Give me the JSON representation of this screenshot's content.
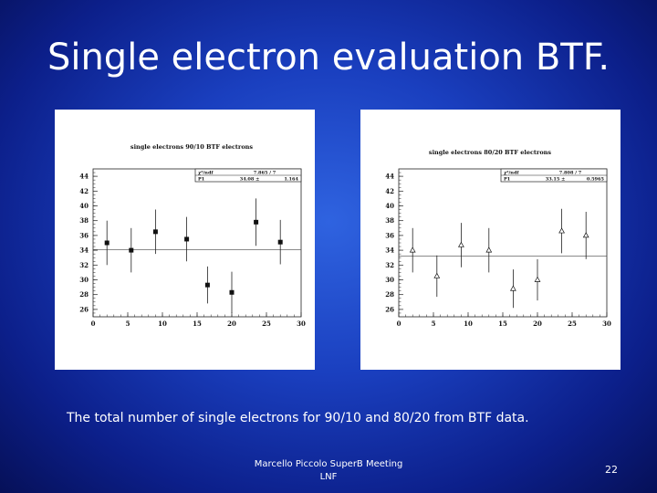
{
  "slide": {
    "title": "Single electron evaluation BTF.",
    "caption": "The total number of single electrons  for 90/10 and 80/20  from BTF  data.",
    "footer_line1": "Marcello Piccolo SuperB Meeting",
    "footer_line2": "LNF",
    "page_number": "22"
  },
  "chart_data": [
    {
      "type": "scatter",
      "title": "single electrons 90/10 BTF electrons",
      "xlabel": "",
      "ylabel": "",
      "xlim": [
        0,
        30
      ],
      "ylim": [
        25,
        45
      ],
      "x_ticks": [
        "0",
        "5",
        "10",
        "15",
        "20",
        "25",
        "30"
      ],
      "y_ticks": [
        "26",
        "28",
        "30",
        "32",
        "34",
        "36",
        "38",
        "40",
        "42",
        "44"
      ],
      "marker": "square",
      "points": [
        {
          "x": 2.0,
          "y": 35.0,
          "err": 3.0
        },
        {
          "x": 5.5,
          "y": 34.0,
          "err": 3.0
        },
        {
          "x": 9.0,
          "y": 36.5,
          "err": 3.0
        },
        {
          "x": 13.5,
          "y": 35.5,
          "err": 3.0
        },
        {
          "x": 16.5,
          "y": 29.3,
          "err": 2.5
        },
        {
          "x": 20.0,
          "y": 28.3,
          "err": 2.8
        },
        {
          "x": 23.5,
          "y": 37.8,
          "err": 3.2
        },
        {
          "x": 27.0,
          "y": 35.1,
          "err": 3.0
        }
      ],
      "fit_line": 34.1,
      "stats": {
        "row1_label": "χ²/ndf",
        "row1_value": "7.865  /  7",
        "row2_label": "P1",
        "row2_value": "34.08  ±",
        "row2_error": "1.164"
      }
    },
    {
      "type": "scatter",
      "title": "single electrons 80/20 BTF electrons",
      "xlabel": "",
      "ylabel": "",
      "xlim": [
        0,
        30
      ],
      "ylim": [
        25,
        45
      ],
      "x_ticks": [
        "0",
        "5",
        "10",
        "15",
        "20",
        "25",
        "30"
      ],
      "y_ticks": [
        "26",
        "28",
        "30",
        "32",
        "34",
        "36",
        "38",
        "40",
        "42",
        "44"
      ],
      "marker": "triangle",
      "points": [
        {
          "x": 2.0,
          "y": 34.0,
          "err": 3.0
        },
        {
          "x": 5.5,
          "y": 30.5,
          "err": 2.8
        },
        {
          "x": 9.0,
          "y": 34.7,
          "err": 3.0
        },
        {
          "x": 13.0,
          "y": 34.0,
          "err": 3.0
        },
        {
          "x": 16.5,
          "y": 28.8,
          "err": 2.6
        },
        {
          "x": 20.0,
          "y": 30.0,
          "err": 2.8
        },
        {
          "x": 23.5,
          "y": 36.6,
          "err": 3.0
        },
        {
          "x": 27.0,
          "y": 36.0,
          "err": 3.2
        }
      ],
      "fit_line": 33.2,
      "stats": {
        "row1_label": "χ²/ndf",
        "row1_value": "7.808  /  7",
        "row2_label": "P1",
        "row2_value": "33.15  ±",
        "row2_error": "0.5965"
      }
    }
  ]
}
